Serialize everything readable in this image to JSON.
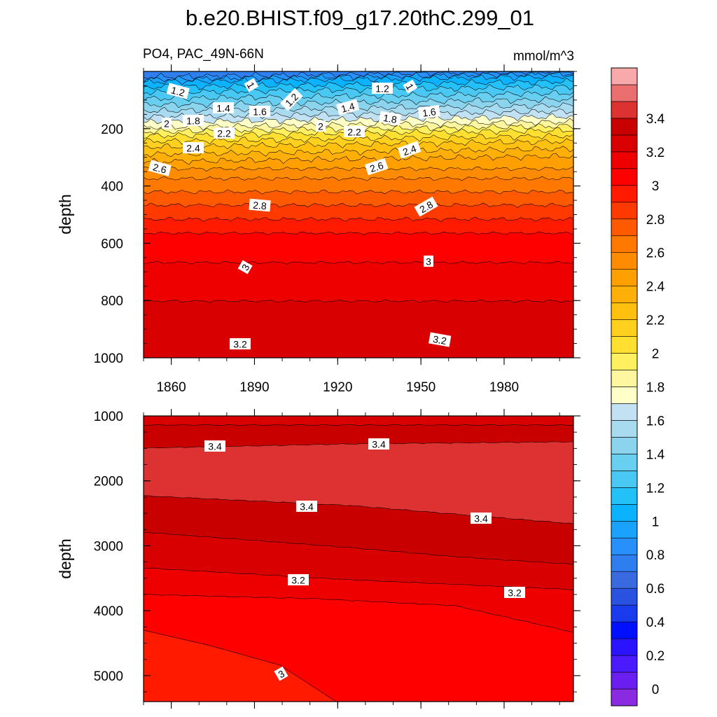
{
  "chart_data": {
    "type": "contour",
    "title": "b.e20.BHIST.f09_g17.20thC.299_01",
    "variable": "PO4, PAC_49N-66N",
    "units": "mmol/m^3",
    "x_ticks": [
      "1860",
      "1890",
      "1920",
      "1950",
      "1980"
    ],
    "x_range": [
      1850,
      2005
    ],
    "colorbar": {
      "levels": [
        -0.1,
        0,
        0.1,
        0.2,
        0.3,
        0.4,
        0.5,
        0.6,
        0.7,
        0.8,
        0.9,
        1,
        1.1,
        1.2,
        1.3,
        1.4,
        1.5,
        1.6,
        1.7,
        1.8,
        1.9,
        2,
        2.1,
        2.2,
        2.3,
        2.4,
        2.5,
        2.6,
        2.7,
        2.8,
        2.9,
        3,
        3.1,
        3.2,
        3.3,
        3.4,
        3.5,
        3.6
      ],
      "colors": [
        "#8a2be2",
        "#6a1ff0",
        "#4b1aff",
        "#2a14ff",
        "#0010ff",
        "#1a3aee",
        "#2a52e0",
        "#3a6ae0",
        "#2e7ef0",
        "#2890fa",
        "#1aa2ff",
        "#0ab2ff",
        "#24c0f8",
        "#48c8f2",
        "#68cff0",
        "#8cd4ee",
        "#a8daf0",
        "#c2e2f4",
        "#ffffc8",
        "#fff7a0",
        "#fff060",
        "#ffe030",
        "#ffd01e",
        "#ffc010",
        "#ffb008",
        "#ffa000",
        "#ff8c00",
        "#ff7800",
        "#ff5a00",
        "#ff3a00",
        "#ff1a00",
        "#ff0000",
        "#ee0000",
        "#d80000",
        "#c80000",
        "#dc3232",
        "#ea6e6e",
        "#f8aaaa"
      ],
      "tick_labels": [
        "0",
        "0.2",
        "0.4",
        "0.6",
        "0.8",
        "1",
        "1.2",
        "1.4",
        "1.6",
        "1.8",
        "2",
        "2.2",
        "2.4",
        "2.6",
        "2.8",
        "3",
        "3.2",
        "3.4"
      ]
    },
    "panels": [
      {
        "name": "upper",
        "ylabel": "depth",
        "y_range": [
          0,
          1000
        ],
        "y_ticks": [
          "200",
          "400",
          "600",
          "800",
          "1000"
        ],
        "contour_labels": [
          "1.2",
          "1",
          "1.2",
          "1.4",
          "1.6",
          "1.2",
          "1",
          "1.4",
          "1.8",
          "1.6",
          "2",
          "1.8",
          "2.2",
          "2",
          "2.2",
          "2.4",
          "2.4",
          "2.6",
          "2.6",
          "2.8",
          "2.8",
          "3",
          "3",
          "3.2",
          "3.2"
        ]
      },
      {
        "name": "lower",
        "ylabel": "depth",
        "y_range": [
          1000,
          5400
        ],
        "y_ticks": [
          "1000",
          "2000",
          "3000",
          "4000",
          "5000"
        ],
        "contour_labels": [
          "3.4",
          "3.4",
          "3.4",
          "3.4",
          "3.2",
          "3.2",
          "3"
        ]
      }
    ]
  }
}
